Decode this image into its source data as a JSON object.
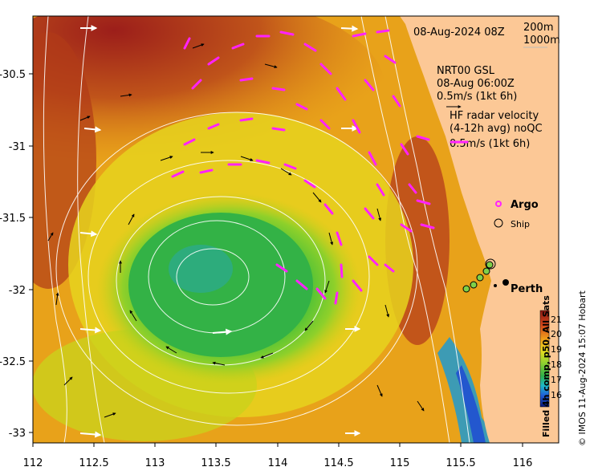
{
  "map": {
    "timestamp": "08-Aug-2024 08Z",
    "depth_contours": [
      "200m",
      "1000m"
    ],
    "model_label": {
      "line1": "NRT00 GSL",
      "line2": "08-Aug 06:00Z",
      "line3": "0.5m/s (1kt 6h)"
    },
    "radar_label": {
      "line1": "HF radar velocity",
      "line2": "(4-12h avg) noQC",
      "line3": "0.5m/s (1kt 6h)"
    },
    "legend_argo": "Argo",
    "legend_ship": "Ship",
    "city": "Perth",
    "colorbar": {
      "title": "Filled 4h comp, p50, All Sats",
      "ticks": [
        "21",
        "20",
        "19",
        "18",
        "17",
        "16"
      ]
    },
    "credit": "© IMOS 11-Aug-2024 15:07 Hobart",
    "x_ticks": [
      "112",
      "112.5",
      "113",
      "113.5",
      "114",
      "114.5",
      "115",
      "115.5",
      "116"
    ],
    "y_ticks": [
      "-30.5",
      "-31",
      "-31.5",
      "-32",
      "-32.5",
      "-33"
    ],
    "colors": {
      "land": "#fcc896",
      "radar_vectors": "#ff22ff",
      "model_vectors": "#000000",
      "contours": "#ffffff"
    }
  }
}
